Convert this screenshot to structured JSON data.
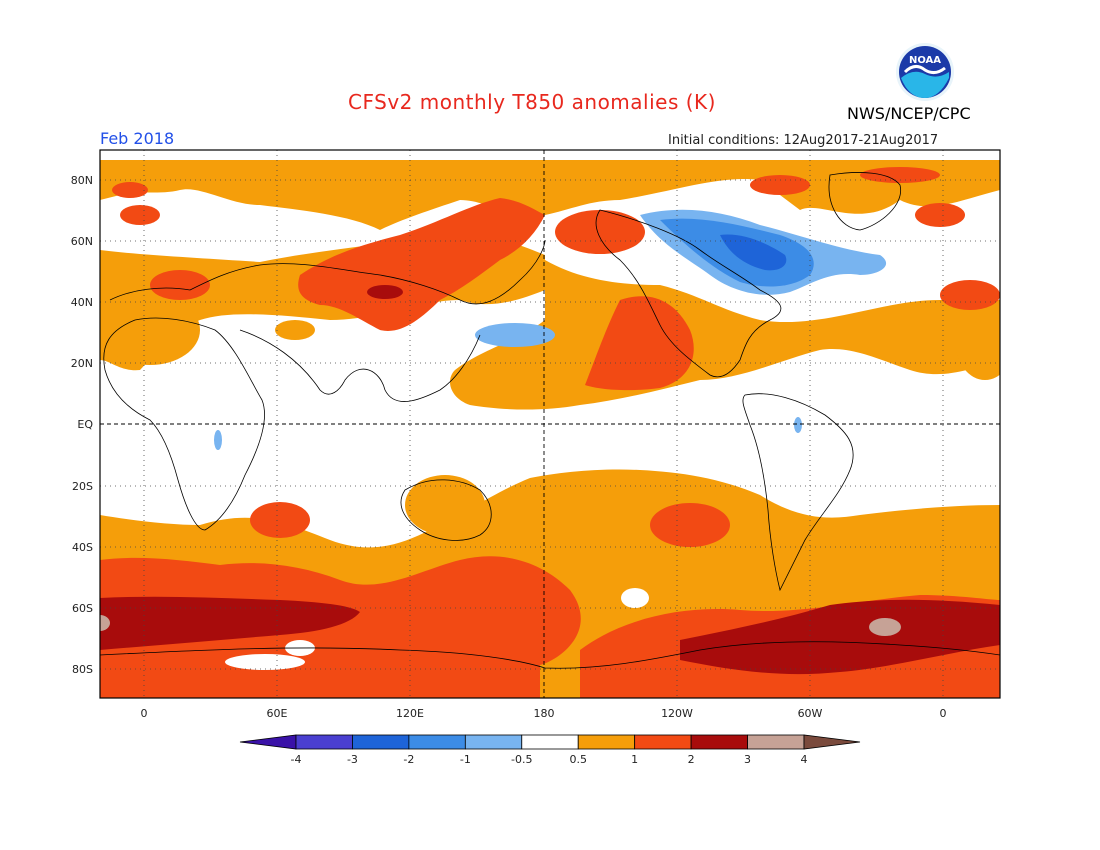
{
  "title": "CFSv2 monthly T850 anomalies (K)",
  "valid_month": "Feb 2018",
  "initial_conditions": "Initial conditions: 12Aug2017-21Aug2017",
  "organization": "NWS/NCEP/CPC",
  "logo_text": "NOAA",
  "lat_labels": [
    "80N",
    "60N",
    "40N",
    "20N",
    "EQ",
    "20S",
    "40S",
    "60S",
    "80S"
  ],
  "lon_labels": [
    "0",
    "60E",
    "120E",
    "180",
    "120W",
    "60W",
    "0"
  ],
  "colorbar": {
    "labels": [
      "-4",
      "-3",
      "-2",
      "-1",
      "-0.5",
      "0.5",
      "1",
      "2",
      "3",
      "4"
    ],
    "colors": [
      "#3a12a8",
      "#4a3fd0",
      "#1e64d8",
      "#3c8ce6",
      "#78b4f0",
      "#ffffff",
      "#f59e0a",
      "#f24a14",
      "#a80c0c",
      "#c6a296",
      "#7a4a3c"
    ]
  },
  "colors": {
    "plus05": "#f59e0a",
    "plus1": "#f24a14",
    "plus2": "#a80c0c",
    "plus3": "#c6a296",
    "minus05": "#78b4f0",
    "minus1": "#3c8ce6",
    "minus2": "#1e64d8"
  }
}
